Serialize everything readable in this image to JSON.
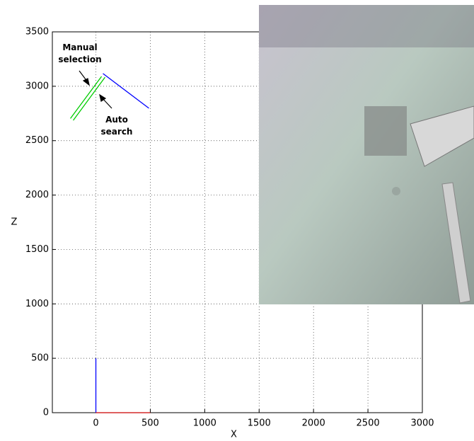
{
  "chart_data": {
    "type": "line",
    "xlabel": "X",
    "ylabel": "Z",
    "xlim": [
      -400,
      3000
    ],
    "ylim": [
      0,
      3500
    ],
    "xticks": [
      0,
      500,
      1000,
      1500,
      2000,
      2500,
      3000
    ],
    "yticks": [
      0,
      500,
      1000,
      1500,
      2000,
      2500,
      3000,
      3500
    ],
    "grid": true,
    "series": [
      {
        "color": "#0000ff",
        "x": [
          0,
          0
        ],
        "values": [
          0,
          500
        ]
      },
      {
        "color": "#cc0000",
        "x": [
          0,
          500
        ],
        "values": [
          0,
          0
        ]
      },
      {
        "color": "#0000ff",
        "x": [
          65,
          487
        ],
        "values": [
          3117,
          2798
        ]
      },
      {
        "color": "#00cc00",
        "x": [
          -234,
          52
        ],
        "values": [
          2704,
          3090
        ]
      },
      {
        "color": "#00cc00",
        "x": [
          -208,
          84
        ],
        "values": [
          2687,
          3083
        ]
      }
    ],
    "annotations": [
      "Manual selection",
      "Auto search"
    ]
  }
}
